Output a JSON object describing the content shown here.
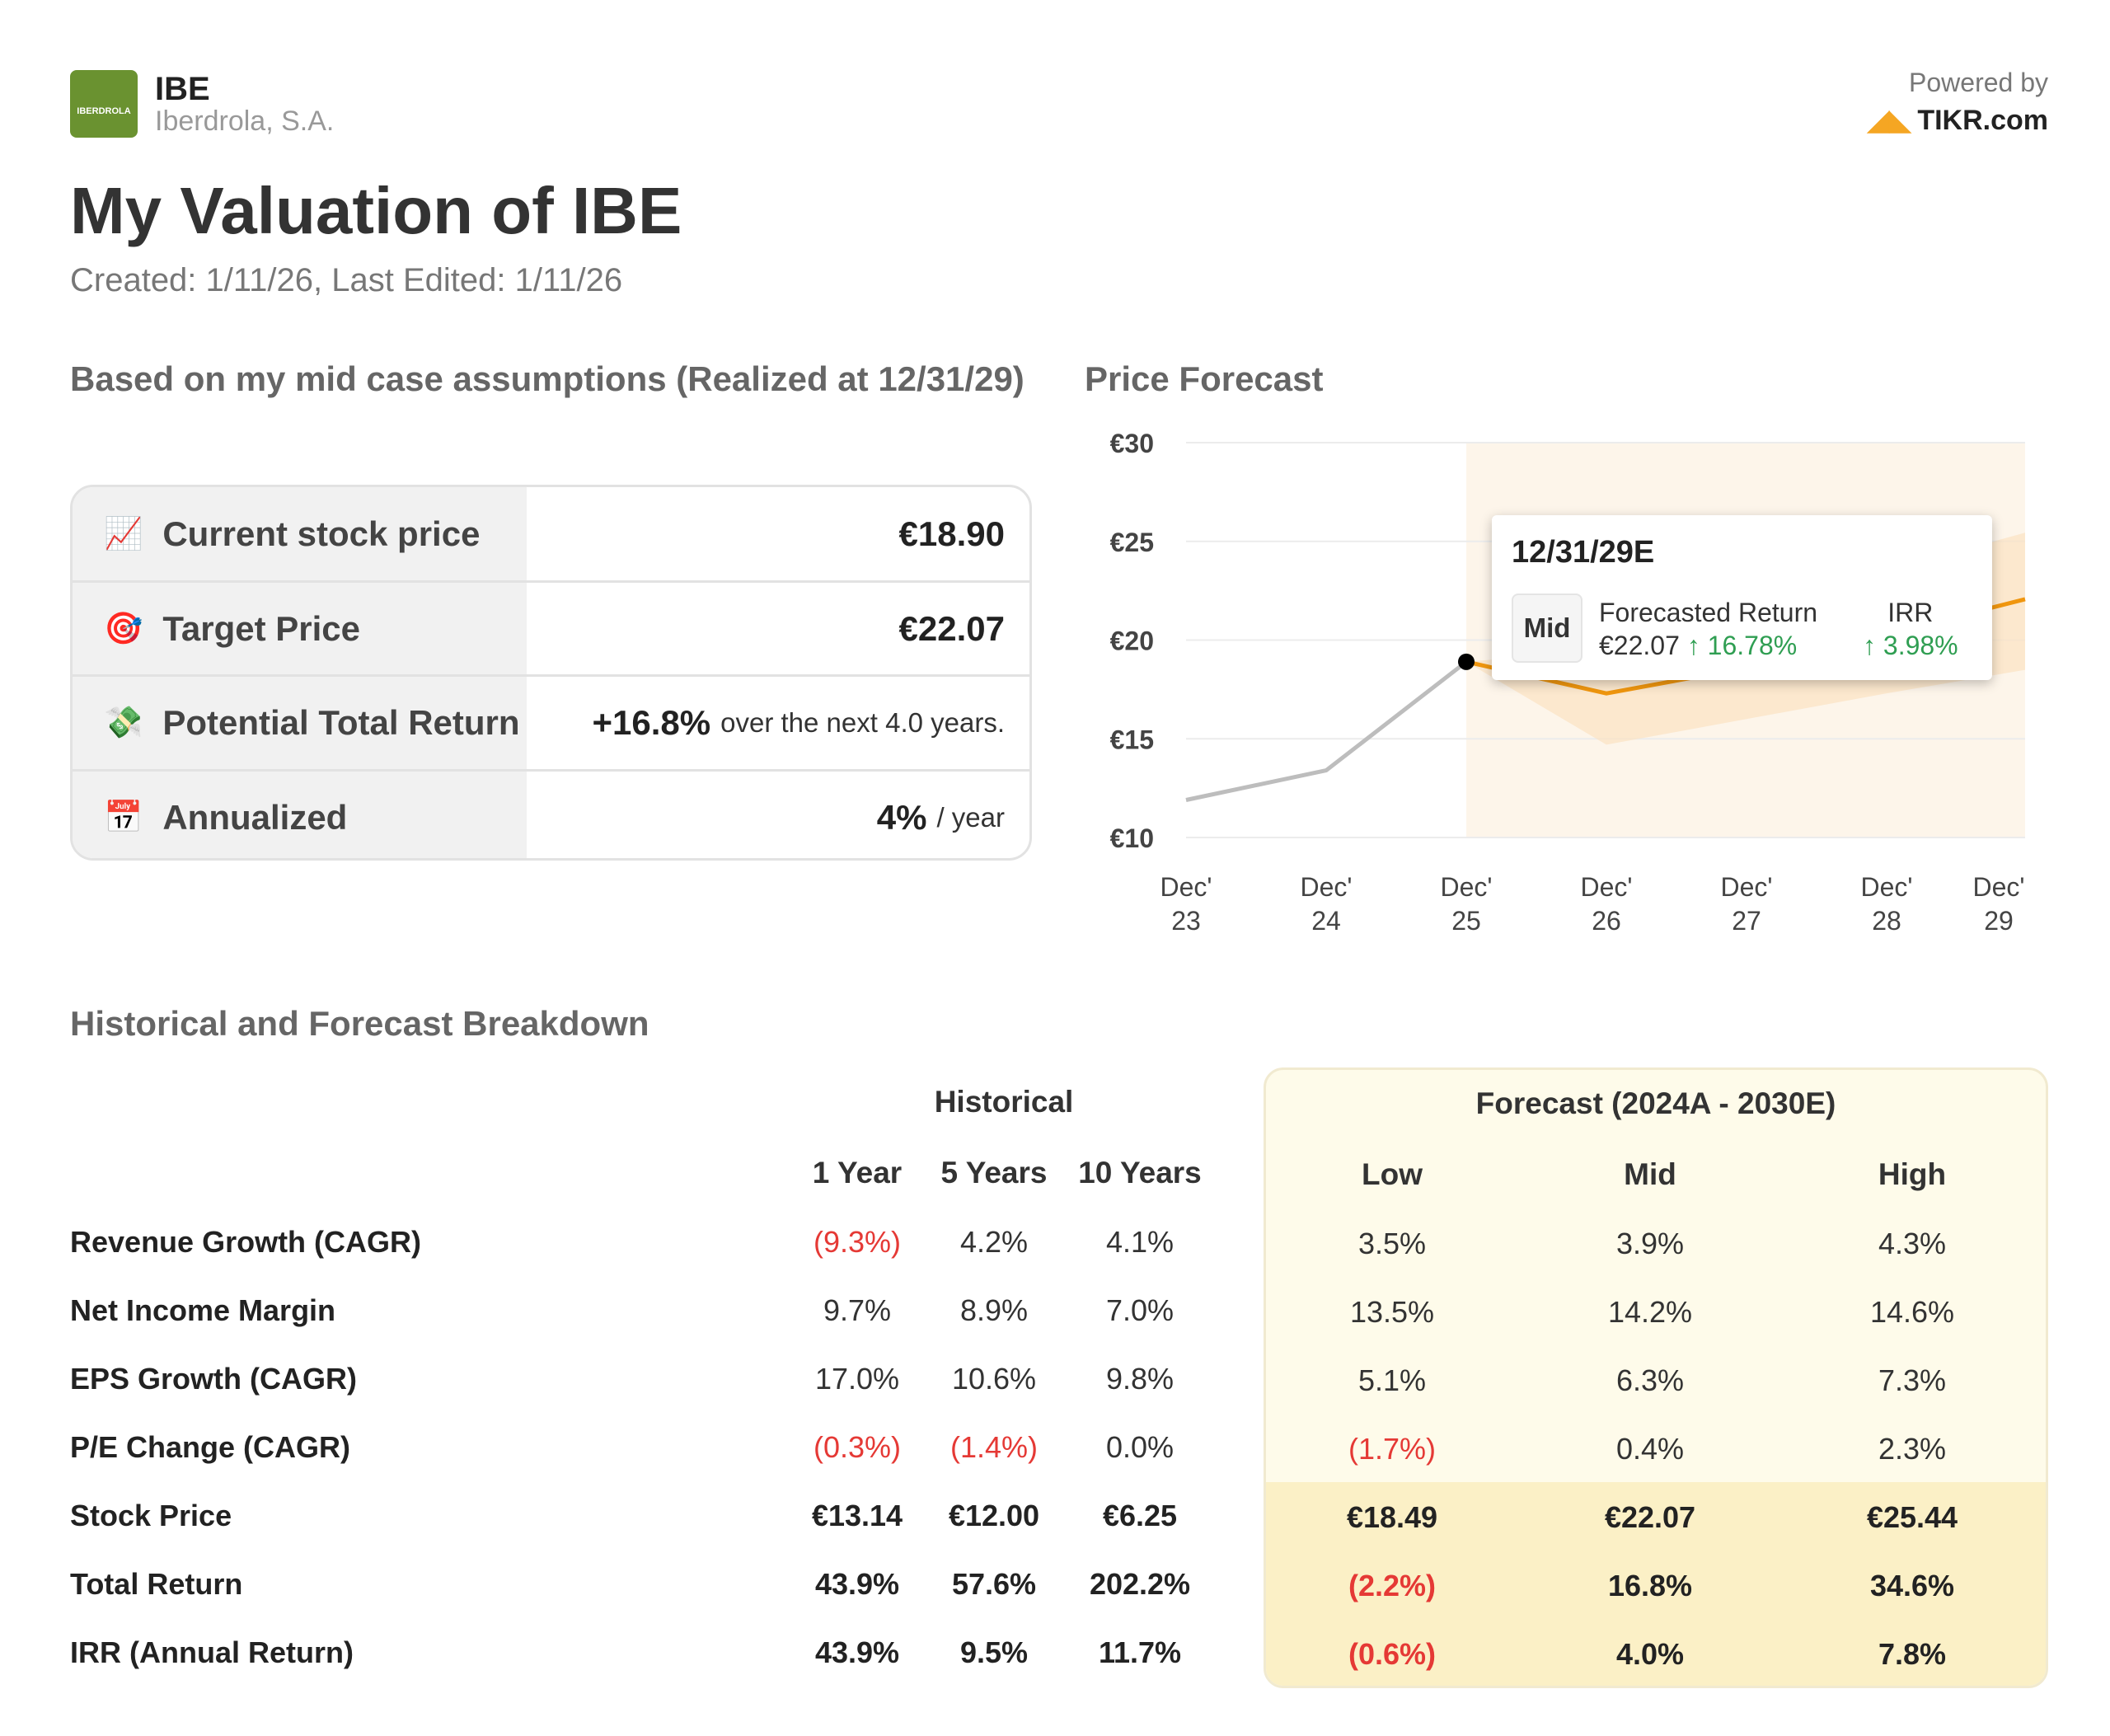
{
  "header": {
    "ticker": "IBE",
    "company": "Iberdrola, S.A.",
    "logo_text": "IBERDROLA",
    "powered_by": "Powered by",
    "brand": "TIKR.com"
  },
  "title": "My Valuation of IBE",
  "created": "Created: 1/11/26, Last Edited: 1/11/26",
  "summary": {
    "heading": "Based on my mid case assumptions (Realized at 12/31/29)",
    "rows": [
      {
        "icon": "chart-increasing-icon",
        "label": "Current stock price",
        "value": "€18.90",
        "suffix": ""
      },
      {
        "icon": "target-icon",
        "label": "Target Price",
        "value": "€22.07",
        "suffix": ""
      },
      {
        "icon": "money-icon",
        "label": "Potential Total Return",
        "value": "+16.8%",
        "suffix": "over the next 4.0 years."
      },
      {
        "icon": "calendar-icon",
        "label": "Annualized",
        "value": "4%",
        "suffix": "/ year"
      }
    ]
  },
  "chart_data": {
    "type": "line",
    "title": "Price Forecast",
    "ylim": [
      10,
      30
    ],
    "yticks": [
      "€10",
      "€15",
      "€20",
      "€25",
      "€30"
    ],
    "ytick_values": [
      10,
      15,
      20,
      25,
      30
    ],
    "x_labels": [
      [
        "Dec'",
        "23"
      ],
      [
        "Dec'",
        "24"
      ],
      [
        "Dec'",
        "25"
      ],
      [
        "Dec'",
        "26"
      ],
      [
        "Dec'",
        "27"
      ],
      [
        "Dec'",
        "28"
      ],
      [
        "Dec'",
        "29"
      ]
    ],
    "historical": {
      "x": [
        0,
        1,
        2
      ],
      "y": [
        11.9,
        13.4,
        18.9
      ]
    },
    "mid": {
      "x": [
        2,
        3,
        4,
        5,
        6.2
      ],
      "y": [
        18.9,
        17.3,
        18.6,
        20.3,
        22.07
      ]
    },
    "low": {
      "x": [
        2,
        3,
        4,
        5,
        6.2
      ],
      "y": [
        18.9,
        14.7,
        16.0,
        17.3,
        18.49
      ]
    },
    "high": {
      "x": [
        2,
        3,
        4,
        5,
        6.2
      ],
      "y": [
        18.9,
        19.5,
        21.5,
        23.5,
        25.44
      ]
    },
    "tooltip": {
      "date": "12/31/29E",
      "case": "Mid",
      "fr_label": "Forecasted Return",
      "fr_price": "€22.07",
      "fr_pct": "↑ 16.78%",
      "irr_label": "IRR",
      "irr_value": "↑ 3.98%"
    }
  },
  "breakdown": {
    "heading": "Historical and Forecast Breakdown",
    "historical_label": "Historical",
    "forecast_label": "Forecast (2024A - 2030E)",
    "hist_cols": [
      "1 Year",
      "5 Years",
      "10 Years"
    ],
    "fc_cols": [
      "Low",
      "Mid",
      "High"
    ],
    "rows": [
      {
        "label": "Revenue Growth (CAGR)",
        "hist": [
          "(9.3%)",
          "4.2%",
          "4.1%"
        ],
        "fc": [
          "3.5%",
          "3.9%",
          "4.3%"
        ]
      },
      {
        "label": "Net Income Margin",
        "hist": [
          "9.7%",
          "8.9%",
          "7.0%"
        ],
        "fc": [
          "13.5%",
          "14.2%",
          "14.6%"
        ]
      },
      {
        "label": "EPS Growth (CAGR)",
        "hist": [
          "17.0%",
          "10.6%",
          "9.8%"
        ],
        "fc": [
          "5.1%",
          "6.3%",
          "7.3%"
        ]
      },
      {
        "label": "P/E Change (CAGR)",
        "hist": [
          "(0.3%)",
          "(1.4%)",
          "0.0%"
        ],
        "fc": [
          "(1.7%)",
          "0.4%",
          "2.3%"
        ]
      },
      {
        "label": "Stock Price",
        "hist": [
          "€13.14",
          "€12.00",
          "€6.25"
        ],
        "fc": [
          "€18.49",
          "€22.07",
          "€25.44"
        ],
        "bold": true
      },
      {
        "label": "Total Return",
        "hist": [
          "43.9%",
          "57.6%",
          "202.2%"
        ],
        "fc": [
          "(2.2%)",
          "16.8%",
          "34.6%"
        ],
        "bold": true
      },
      {
        "label": "IRR (Annual Return)",
        "hist": [
          "43.9%",
          "9.5%",
          "11.7%"
        ],
        "fc": [
          "(0.6%)",
          "4.0%",
          "7.8%"
        ],
        "bold": true
      }
    ]
  }
}
